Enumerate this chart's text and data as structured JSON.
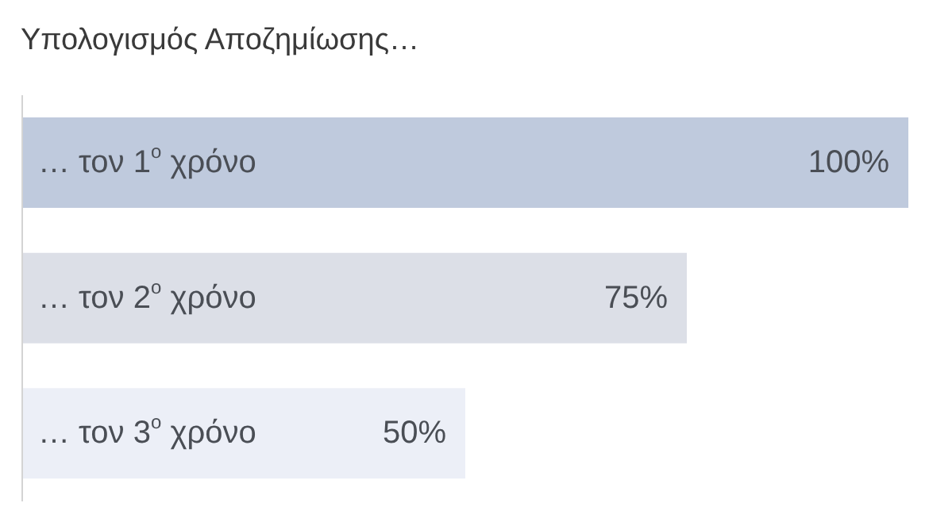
{
  "chart_data": {
    "type": "bar",
    "orientation": "horizontal",
    "title": "Υπολογισμός Αποζημίωσης…",
    "categories": [
      "… τον 1$^{ο}$ χρόνο",
      "… τον 2$^{ο}$ χρόνο",
      "… τον 3$^{ο}$ χρόνο"
    ],
    "values": [
      100,
      75,
      50
    ],
    "colors": [
      "#bfcadd",
      "#dcdfe7",
      "#eceff7"
    ],
    "value_labels": [
      "100%",
      "75%",
      "50%"
    ]
  }
}
